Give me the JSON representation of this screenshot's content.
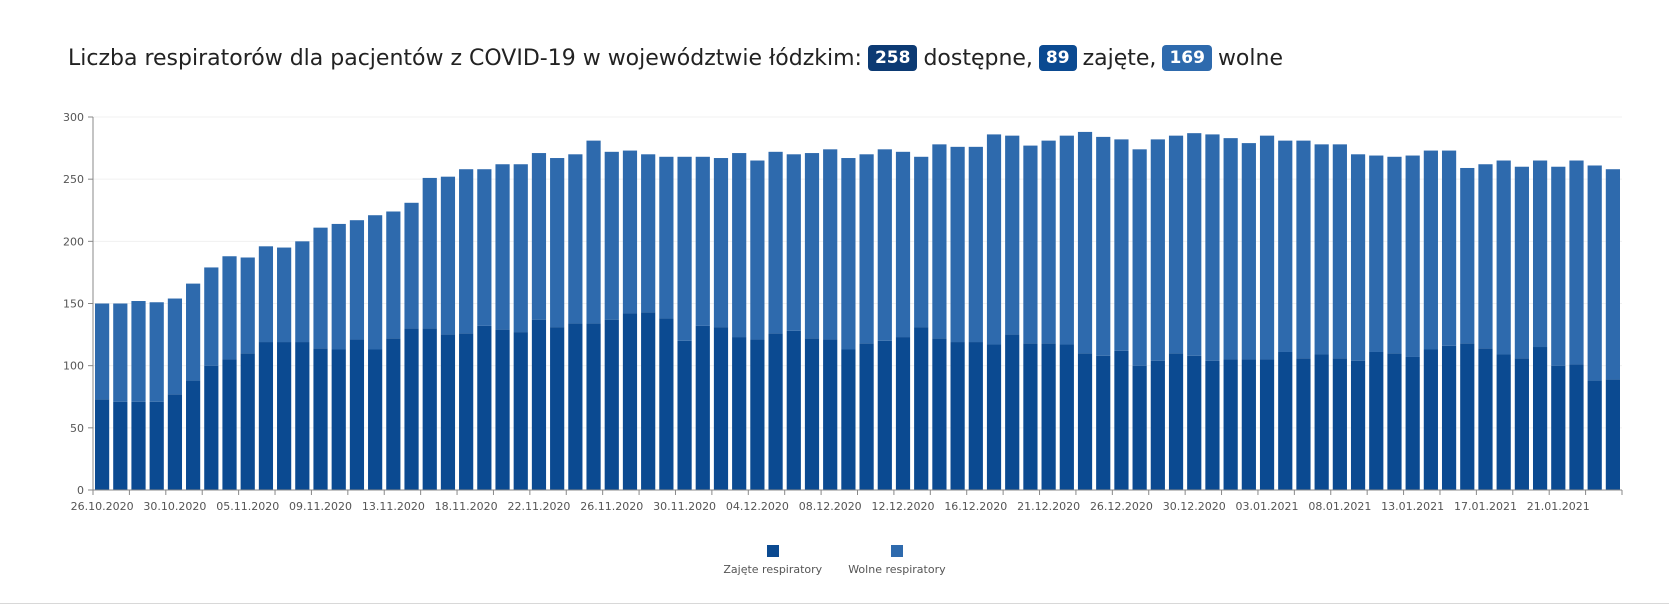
{
  "header": {
    "title_prefix": "Liczba respiratorów dla pacjentów z COVID-19 w województwie łódzkim:",
    "available_value": "258",
    "available_label": "dostępne,",
    "occupied_value": "89",
    "occupied_label": "zajęte,",
    "free_value": "169",
    "free_label": "wolne"
  },
  "colors": {
    "occupied": "#0b4a91",
    "free": "#2e6aad",
    "badge_available": "#0c3a73",
    "badge_occupied": "#0b4a91",
    "badge_free": "#2e6aad"
  },
  "chart_data": {
    "type": "bar",
    "stacked": true,
    "ylim": [
      0,
      300
    ],
    "yticks": [
      "0",
      "50",
      "100",
      "150",
      "200",
      "250",
      "300"
    ],
    "xtick_labels": [
      "26.10.2020",
      "30.10.2020",
      "05.11.2020",
      "09.11.2020",
      "13.11.2020",
      "18.11.2020",
      "22.11.2020",
      "26.11.2020",
      "30.11.2020",
      "04.12.2020",
      "08.12.2020",
      "12.12.2020",
      "16.12.2020",
      "21.12.2020",
      "26.12.2020",
      "30.12.2020",
      "03.01.2021",
      "08.01.2021",
      "13.01.2021",
      "17.01.2021",
      "21.01.2021"
    ],
    "xtick_label_bar_index": [
      0,
      4,
      8,
      12,
      16,
      20,
      24,
      28,
      32,
      36,
      40,
      44,
      48,
      52,
      56,
      60,
      64,
      68,
      72,
      76,
      80
    ],
    "series": [
      {
        "name": "Zajęte respiratory",
        "values": [
          73,
          71,
          71,
          71,
          77,
          88,
          100,
          105,
          110,
          119,
          119,
          119,
          114,
          113,
          121,
          113,
          122,
          130,
          130,
          125,
          126,
          132,
          129,
          127,
          137,
          131,
          134,
          134,
          137,
          142,
          143,
          138,
          120,
          132,
          131,
          123,
          121,
          126,
          128,
          122,
          121,
          113,
          118,
          120,
          123,
          131,
          122,
          119,
          119,
          117,
          125,
          118,
          118,
          117,
          110,
          108,
          112,
          100,
          104,
          110,
          108,
          104,
          105,
          105,
          105,
          111,
          106,
          109,
          106,
          104,
          111,
          110,
          107,
          113,
          116,
          118,
          114,
          109,
          106,
          115,
          100,
          101,
          88,
          89
        ]
      },
      {
        "name": "Wolne respiratory",
        "values": [
          77,
          79,
          81,
          80,
          77,
          78,
          79,
          83,
          77,
          77,
          76,
          81,
          97,
          101,
          96,
          108,
          102,
          101,
          121,
          127,
          132,
          126,
          133,
          135,
          134,
          136,
          136,
          147,
          135,
          131,
          127,
          130,
          148,
          136,
          136,
          148,
          144,
          146,
          142,
          149,
          153,
          154,
          152,
          154,
          149,
          137,
          156,
          157,
          157,
          169,
          160,
          159,
          163,
          168,
          178,
          176,
          170,
          174,
          178,
          175,
          179,
          182,
          178,
          174,
          180,
          170,
          175,
          169,
          172,
          166,
          158,
          158,
          162,
          160,
          157,
          141,
          148,
          156,
          154,
          150,
          160,
          164,
          173,
          169
        ]
      }
    ]
  }
}
